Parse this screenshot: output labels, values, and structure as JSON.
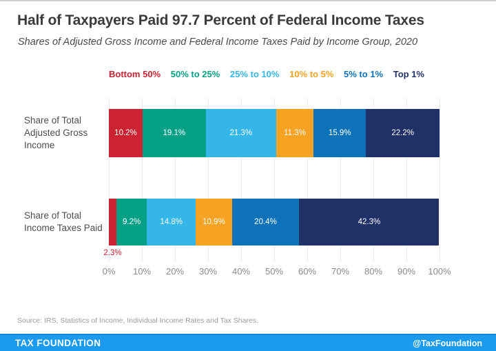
{
  "header": {
    "title": "Half of Taxpayers Paid 97.7 Percent of Federal Income Taxes",
    "subtitle": "Shares of Adjusted Gross Income and Federal Income Taxes Paid by Income Group, 2020"
  },
  "chart_data": {
    "type": "bar",
    "orientation": "horizontal",
    "stacked": true,
    "grid": true,
    "legend_position": "top",
    "xlim": [
      0,
      100
    ],
    "x_ticks": [
      "0%",
      "10%",
      "20%",
      "30%",
      "40%",
      "50%",
      "60%",
      "70%",
      "80%",
      "90%",
      "100%"
    ],
    "groups": [
      {
        "name": "Bottom 50%",
        "color": "#cb2332"
      },
      {
        "name": "50% to 25%",
        "color": "#06a086"
      },
      {
        "name": "25% to 10%",
        "color": "#35b6e9"
      },
      {
        "name": "10% to 5%",
        "color": "#f6a324"
      },
      {
        "name": "5% to 1%",
        "color": "#0e72b8"
      },
      {
        "name": "Top 1%",
        "color": "#1f3167"
      }
    ],
    "rows": [
      {
        "label_lines": [
          "Share of Total",
          "Adjusted Gross",
          "Income"
        ],
        "values": [
          10.2,
          19.1,
          21.3,
          11.3,
          15.9,
          22.2
        ],
        "labels": [
          "10.2%",
          "19.1%",
          "21.3%",
          "11.3%",
          "15.9%",
          "22.2%"
        ],
        "outside_label_index": -1
      },
      {
        "label_lines": [
          "Share of Total",
          "Income Taxes Paid"
        ],
        "values": [
          2.3,
          9.2,
          14.8,
          10.9,
          20.4,
          42.3
        ],
        "labels": [
          "2.3%",
          "9.2%",
          "14.8%",
          "10.9%",
          "20.4%",
          "42.3%"
        ],
        "outside_label_index": 0
      }
    ]
  },
  "source_note": "Source: IRS, Statistics of Income, Individual Income Rates and Tax Shares.",
  "footer": {
    "brand": "TAX FOUNDATION",
    "handle": "@TaxFoundation",
    "bar_color": "#1b9bf0"
  }
}
